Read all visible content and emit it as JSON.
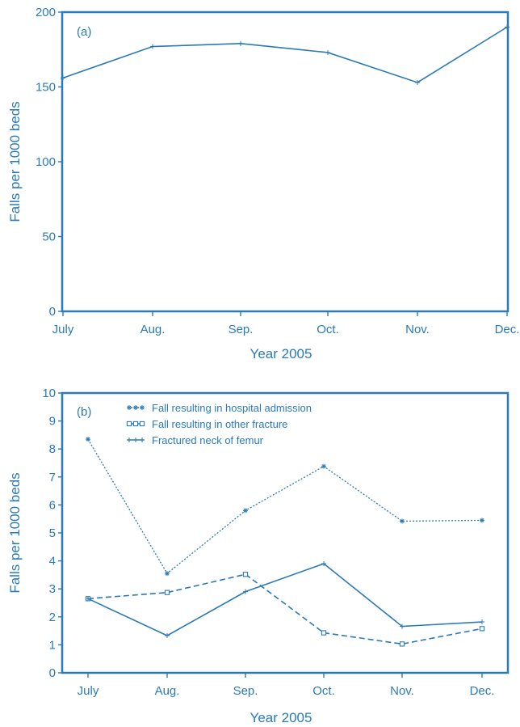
{
  "accent_color": "#2a7ab8",
  "chart_data": [
    {
      "type": "line",
      "panel_label": "(a)",
      "categories": [
        "July",
        "Aug.",
        "Sep.",
        "Oct.",
        "Nov.",
        "Dec."
      ],
      "xlabel": "Year 2005",
      "ylabel": "Falls per 1000 beds",
      "ylim": [
        0,
        200
      ],
      "yticks": [
        "0",
        "50",
        "100",
        "150",
        "200"
      ],
      "grid": false,
      "series": [
        {
          "values": [
            156,
            177,
            179,
            173,
            153,
            190
          ]
        }
      ]
    },
    {
      "type": "line",
      "panel_label": "(b)",
      "categories": [
        "July",
        "Aug.",
        "Sep.",
        "Oct.",
        "Nov.",
        "Dec."
      ],
      "xlabel": "Year 2005",
      "ylabel": "Falls per 1000 beds",
      "ylim": [
        0,
        10
      ],
      "yticks": [
        "0",
        "1",
        "2",
        "3",
        "4",
        "5",
        "6",
        "7",
        "8",
        "9",
        "10"
      ],
      "grid": false,
      "legend_position": "top-left",
      "series": [
        {
          "name": "Fall resulting in hospital admission",
          "style": "dotted",
          "marker": "star",
          "values": [
            8.35,
            3.55,
            5.8,
            7.38,
            5.42,
            5.45
          ]
        },
        {
          "name": "Fall resulting in other fracture",
          "style": "dashed",
          "marker": "square",
          "values": [
            2.65,
            2.87,
            3.52,
            1.43,
            1.03,
            1.58
          ]
        },
        {
          "name": "Fractured neck of femur",
          "style": "solid",
          "marker": "plus",
          "values": [
            2.65,
            1.33,
            2.9,
            3.9,
            1.66,
            1.82
          ]
        }
      ]
    }
  ]
}
